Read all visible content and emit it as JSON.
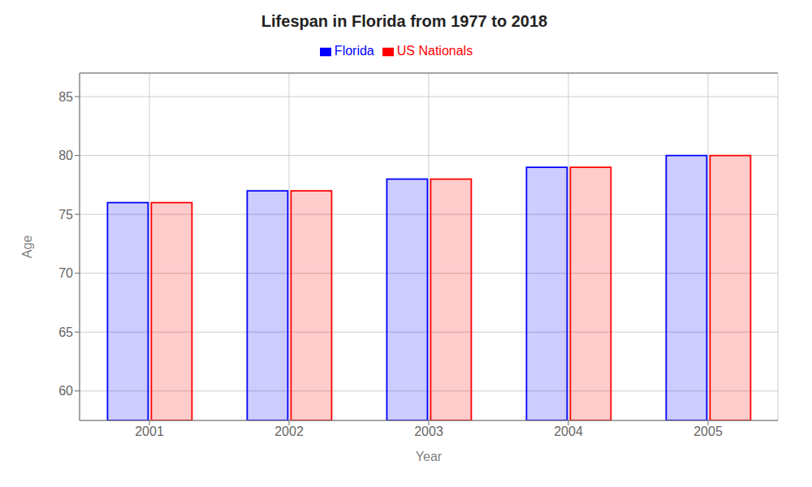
{
  "chart_data": {
    "type": "bar",
    "title": "Lifespan in Florida from 1977 to 2018",
    "x_label": "Year",
    "y_label": "Age",
    "categories": [
      "2001",
      "2002",
      "2003",
      "2004",
      "2005"
    ],
    "series": [
      {
        "name": "Florida",
        "color": "#0000ff",
        "values": [
          76.0,
          77.0,
          78.0,
          79.0,
          80.0
        ]
      },
      {
        "name": "US Nationals",
        "color": "#ff0000",
        "values": [
          76.0,
          77.0,
          78.0,
          79.0,
          80.0
        ]
      }
    ],
    "ylim": [
      57.5,
      87
    ],
    "yticks": [
      60,
      65,
      70,
      75,
      80,
      85
    ],
    "grid": true,
    "legend": "top"
  }
}
